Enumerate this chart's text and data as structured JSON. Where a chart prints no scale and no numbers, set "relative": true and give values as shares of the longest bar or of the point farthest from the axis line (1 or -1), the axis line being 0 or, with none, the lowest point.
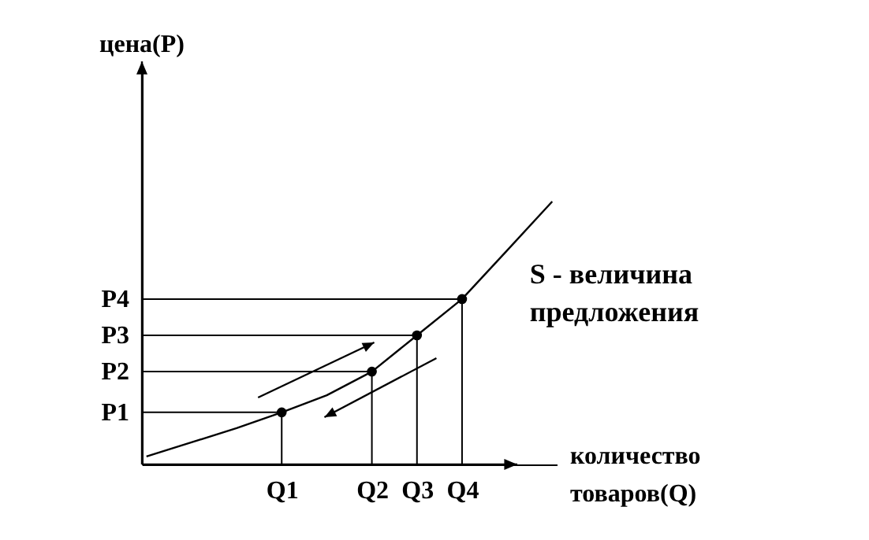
{
  "chart_data": {
    "type": "line",
    "xlabel": "количество товаров(Q)",
    "relative": true,
    "categories": [
      null,
      null,
      null,
      "Q1",
      null,
      "Q2",
      "Q3",
      "Q4",
      null,
      null
    ],
    "annotations": [
      "S - величина предложения",
      "P1",
      "P2",
      "P3",
      "P4",
      "цена(P)"
    ],
    "series": [
      {
        "color": "#000000",
        "marker": "none",
        "line_style": "solid",
        "values": [
          0.03,
          0.084,
          0.138,
          0.198,
          0.263,
          0.353,
          0.491,
          0.629,
          0.814,
          1
        ]
      },
      {
        "type": "scatter",
        "color": "#000000",
        "marker": "circle",
        "values": [
          null,
          null,
          null,
          0.198,
          null,
          0.353,
          0.491,
          0.629,
          null,
          null
        ]
      }
    ]
  }
}
